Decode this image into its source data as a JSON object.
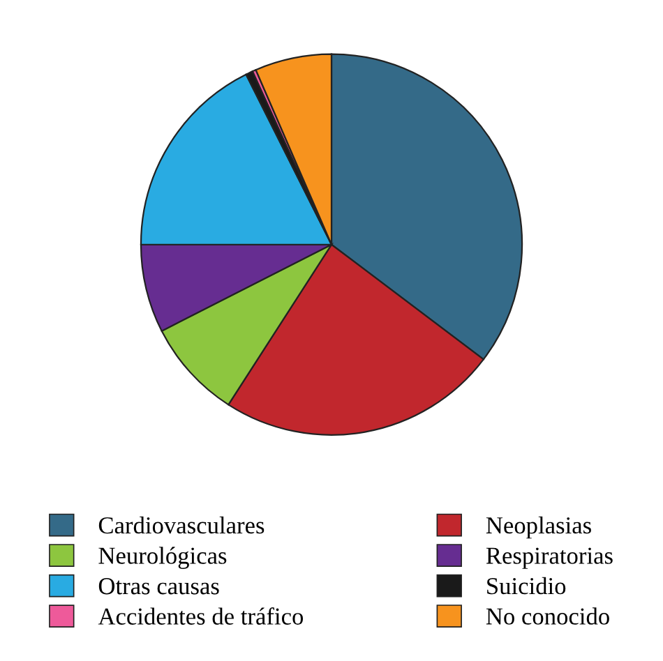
{
  "chart_data": {
    "type": "pie",
    "categories": [
      "Cardiovasculares",
      "Neoplasias",
      "Neurológicas",
      "Respiratorias",
      "Otras causas",
      "Suicidio",
      "Accidentes de tráfico",
      "No conocido"
    ],
    "values": [
      35.3,
      23.8,
      8.4,
      7.5,
      17.6,
      0.6,
      0.3,
      6.5
    ],
    "colors": [
      "#346a88",
      "#c1272d",
      "#8dc63f",
      "#662d91",
      "#29abe2",
      "#1a1a1a",
      "#ee5a9a",
      "#f7931e"
    ],
    "legend": "bottom"
  }
}
